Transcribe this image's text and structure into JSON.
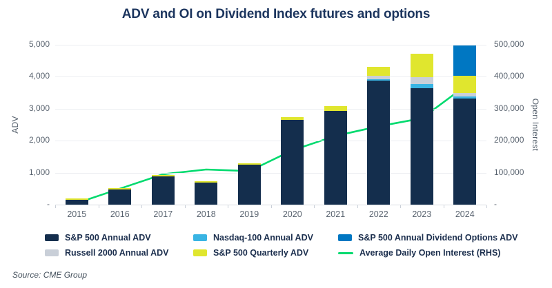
{
  "title": "ADV and OI on Dividend Index futures and options",
  "source": "Source: CME Group",
  "axes": {
    "left_label": "ADV",
    "right_label": "Open Interest",
    "left_ticks": [
      {
        "v": 5000,
        "label": "5,000"
      },
      {
        "v": 4000,
        "label": "4,000"
      },
      {
        "v": 3000,
        "label": "3,000"
      },
      {
        "v": 2000,
        "label": "2,000"
      },
      {
        "v": 1000,
        "label": "1,000"
      },
      {
        "v": 0,
        "label": "-"
      }
    ],
    "right_ticks": [
      {
        "v": 500000,
        "label": "500,000"
      },
      {
        "v": 400000,
        "label": "400,000"
      },
      {
        "v": 300000,
        "label": "300,000"
      },
      {
        "v": 200000,
        "label": "200,000"
      },
      {
        "v": 100000,
        "label": "100,000"
      },
      {
        "v": 0,
        "label": "-"
      }
    ]
  },
  "colors": {
    "sp500_annual": "#142e4d",
    "nasdaq100": "#39b4e3",
    "russell2000": "#c9cfd8",
    "sp500_quarterly": "#e0e62e",
    "dividend_options": "#0077c2",
    "oi_line": "#00da6e",
    "title_navy": "#1c355e"
  },
  "chart_data": {
    "type": "bar",
    "subtype": "stacked bars with line overlay (dual axis)",
    "categories": [
      "2015",
      "2016",
      "2017",
      "2018",
      "2019",
      "2020",
      "2021",
      "2022",
      "2023",
      "2024"
    ],
    "ylabel": "ADV",
    "y2label": "Open Interest",
    "ylim": [
      0,
      5000
    ],
    "y2lim": [
      0,
      500000
    ],
    "grid": "horizontal",
    "series": [
      {
        "name": "S&P 500 Annual ADV",
        "color": "#142e4d",
        "values": [
          170,
          480,
          880,
          690,
          1240,
          2650,
          2930,
          3880,
          3640,
          3320
        ]
      },
      {
        "name": "Nasdaq-100 Annual ADV",
        "color": "#39b4e3",
        "values": [
          0,
          0,
          0,
          0,
          0,
          0,
          0,
          40,
          130,
          60
        ]
      },
      {
        "name": "Russell 2000 Annual ADV",
        "color": "#c9cfd8",
        "values": [
          0,
          0,
          0,
          0,
          0,
          0,
          0,
          110,
          215,
          110
        ]
      },
      {
        "name": "S&P 500 Quarterly ADV",
        "color": "#e0e62e",
        "values": [
          20,
          40,
          45,
          40,
          60,
          80,
          150,
          280,
          735,
          530
        ]
      },
      {
        "name": "S&P 500 Annual Dividend Options ADV",
        "color": "#0077c2",
        "values": [
          0,
          0,
          0,
          0,
          0,
          0,
          0,
          0,
          0,
          950
        ]
      }
    ],
    "line_series": {
      "name": "Average Daily Open Interest (RHS)",
      "axis": "right",
      "color": "#00da6e",
      "values": [
        5000,
        50000,
        95000,
        110000,
        105000,
        170000,
        215000,
        245000,
        270000,
        370000
      ]
    }
  },
  "legend": {
    "columns": [
      {
        "items": [
          {
            "label": "S&P 500 Annual ADV",
            "color": "#142e4d",
            "type": "box"
          },
          {
            "label": "Russell 2000 Annual ADV",
            "color": "#c9cfd8",
            "type": "box"
          }
        ]
      },
      {
        "items": [
          {
            "label": "Nasdaq-100 Annual ADV",
            "color": "#39b4e3",
            "type": "box"
          },
          {
            "label": "S&P 500 Quarterly ADV",
            "color": "#e0e62e",
            "type": "box"
          }
        ]
      },
      {
        "items": [
          {
            "label": "S&P 500 Annual Dividend Options ADV",
            "color": "#0077c2",
            "type": "box"
          },
          {
            "label": "Average Daily Open Interest (RHS)",
            "color": "#00da6e",
            "type": "line"
          }
        ]
      }
    ]
  }
}
